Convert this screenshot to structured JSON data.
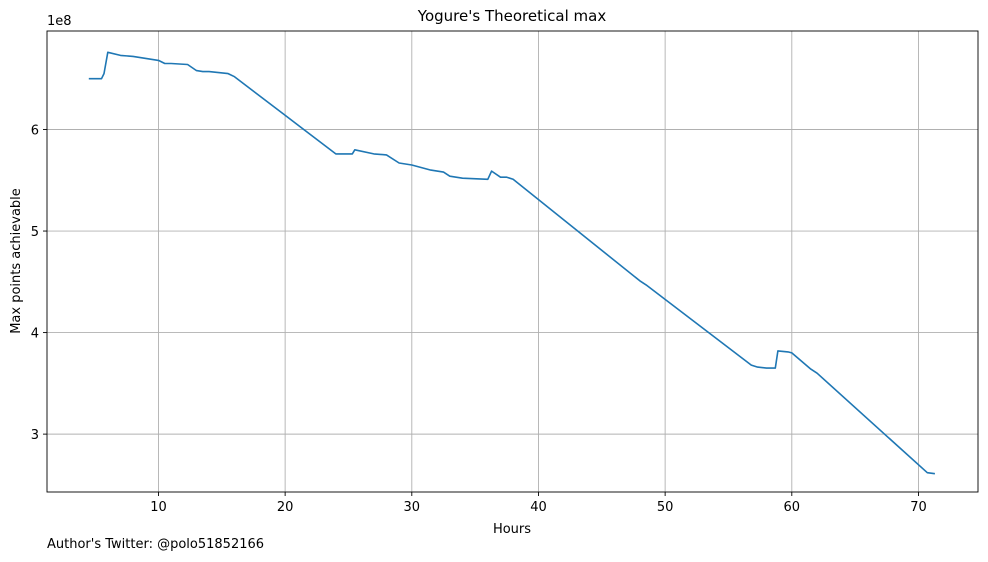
{
  "chart_data": {
    "type": "line",
    "title": "Yogure's Theoretical max",
    "xlabel": "Hours",
    "ylabel": "Max points achievable",
    "y_multiplier_label": "1e8",
    "xlim": [
      1.2,
      74.7
    ],
    "ylim": [
      2.43,
      6.97
    ],
    "x_ticks": [
      10,
      20,
      30,
      40,
      50,
      60,
      70
    ],
    "x_tick_labels": [
      "10",
      "20",
      "30",
      "40",
      "50",
      "60",
      "70"
    ],
    "y_ticks": [
      3,
      4,
      5,
      6
    ],
    "y_tick_labels": [
      "3",
      "4",
      "5",
      "6"
    ],
    "grid": true,
    "line_color": "#1f77b4",
    "series": [
      {
        "x": [
          4.5,
          5.5,
          5.7,
          6.0,
          7.0,
          8.0,
          9.0,
          10.0,
          10.5,
          11.0,
          12.3,
          13.0,
          13.5,
          14.0,
          15.5,
          16.0,
          20.0,
          24.0,
          25.0,
          25.3,
          25.5,
          27.0,
          28.0,
          29.0,
          30.0,
          31.5,
          32.5,
          33.0,
          34.0,
          36.0,
          36.3,
          37.0,
          37.5,
          38.0,
          48.0,
          48.5,
          56.8,
          57.3,
          58.0,
          58.7,
          58.9,
          59.7,
          60.0,
          61.5,
          62.0,
          70.7,
          71.3
        ],
        "values": [
          6.5,
          6.5,
          6.55,
          6.76,
          6.73,
          6.72,
          6.7,
          6.68,
          6.65,
          6.65,
          6.64,
          6.58,
          6.57,
          6.57,
          6.55,
          6.52,
          6.14,
          5.76,
          5.76,
          5.76,
          5.8,
          5.76,
          5.75,
          5.67,
          5.65,
          5.6,
          5.58,
          5.54,
          5.52,
          5.51,
          5.59,
          5.53,
          5.53,
          5.51,
          4.51,
          4.47,
          3.68,
          3.66,
          3.65,
          3.65,
          3.82,
          3.81,
          3.8,
          3.64,
          3.6,
          2.62,
          2.61
        ]
      }
    ]
  },
  "footer": {
    "text": "Author's Twitter: @polo51852166"
  }
}
